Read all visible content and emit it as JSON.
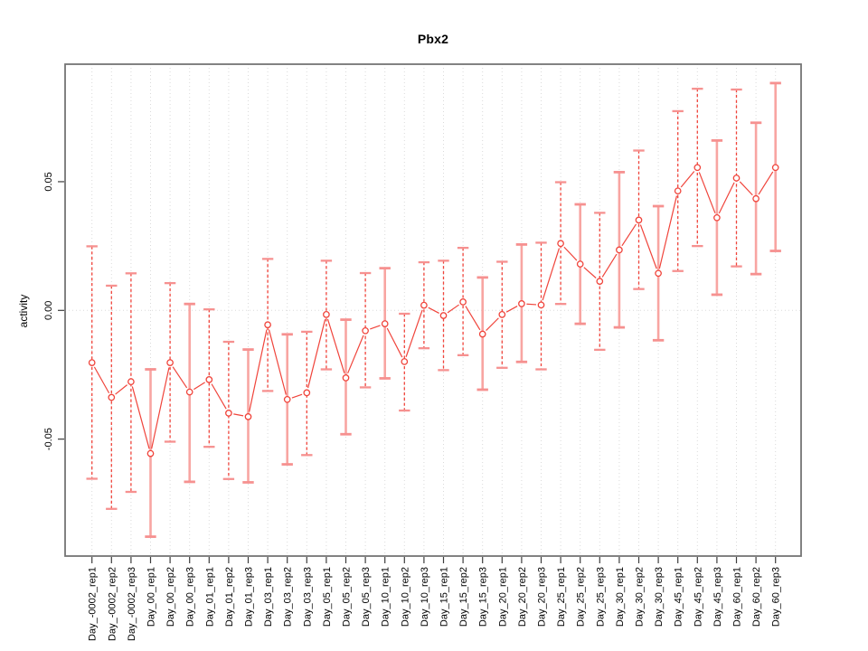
{
  "chart_data": {
    "type": "line",
    "subtype": "points-with-error-bars",
    "title": "Pbx2",
    "xlabel": "",
    "ylabel": "activity",
    "legend": null,
    "grid": {
      "vertical_dotted_per_category": true,
      "horizontal_line_at": 0,
      "style": "dotted"
    },
    "ylim": [
      -0.095,
      0.096
    ],
    "y_ticks": [
      {
        "value": 0.05,
        "label": "0.05"
      },
      {
        "value": 0.0,
        "label": "0.00"
      },
      {
        "value": -0.05,
        "label": "-0.05"
      }
    ],
    "categories": [
      "Day_-0002_rep1",
      "Day_-0002_rep2",
      "Day_-0002_rep3",
      "Day_00_rep1",
      "Day_00_rep2",
      "Day_00_rep3",
      "Day_01_rep1",
      "Day_01_rep2",
      "Day_01_rep3",
      "Day_03_rep1",
      "Day_03_rep2",
      "Day_03_rep3",
      "Day_05_rep1",
      "Day_05_rep2",
      "Day_05_rep3",
      "Day_10_rep1",
      "Day_10_rep2",
      "Day_10_rep3",
      "Day_15_rep1",
      "Day_15_rep2",
      "Day_15_rep3",
      "Day_20_rep1",
      "Day_20_rep2",
      "Day_20_rep3",
      "Day_25_rep1",
      "Day_25_rep2",
      "Day_25_rep3",
      "Day_30_rep1",
      "Day_30_rep2",
      "Day_30_rep3",
      "Day_45_rep1",
      "Day_45_rep2",
      "Day_45_rep3",
      "Day_60_rep1",
      "Day_60_rep2",
      "Day_60_rep3"
    ],
    "series": [
      {
        "name": "activity",
        "color": "#f0443b",
        "points": [
          {
            "label": "Day_-0002_rep1",
            "value": -0.0203,
            "lo": -0.0654,
            "hi": 0.0249,
            "bar_style": "dashed"
          },
          {
            "label": "Day_-0002_rep2",
            "value": -0.0338,
            "lo": -0.0771,
            "hi": 0.0096,
            "bar_style": "dashed"
          },
          {
            "label": "Day_-0002_rep3",
            "value": -0.0277,
            "lo": -0.0705,
            "hi": 0.0144,
            "bar_style": "dashed"
          },
          {
            "label": "Day_00_rep1",
            "value": -0.0556,
            "lo": -0.0879,
            "hi": -0.0229,
            "bar_style": "solid"
          },
          {
            "label": "Day_00_rep2",
            "value": -0.0203,
            "lo": -0.051,
            "hi": 0.0106,
            "bar_style": "dashed"
          },
          {
            "label": "Day_00_rep3",
            "value": -0.0317,
            "lo": -0.0666,
            "hi": 0.0025,
            "bar_style": "solid"
          },
          {
            "label": "Day_01_rep1",
            "value": -0.0269,
            "lo": -0.053,
            "hi": 0.0004,
            "bar_style": "dashed"
          },
          {
            "label": "Day_01_rep2",
            "value": -0.0399,
            "lo": -0.0655,
            "hi": -0.0122,
            "bar_style": "dashed"
          },
          {
            "label": "Day_01_rep3",
            "value": -0.0413,
            "lo": -0.0668,
            "hi": -0.0152,
            "bar_style": "solid"
          },
          {
            "label": "Day_03_rep1",
            "value": -0.0056,
            "lo": -0.0313,
            "hi": 0.02,
            "bar_style": "dashed"
          },
          {
            "label": "Day_03_rep2",
            "value": -0.0346,
            "lo": -0.0598,
            "hi": -0.0093,
            "bar_style": "solid"
          },
          {
            "label": "Day_03_rep3",
            "value": -0.032,
            "lo": -0.0562,
            "hi": -0.0083,
            "bar_style": "dashed"
          },
          {
            "label": "Day_05_rep1",
            "value": -0.0016,
            "lo": -0.0229,
            "hi": 0.0193,
            "bar_style": "dashed"
          },
          {
            "label": "Day_05_rep2",
            "value": -0.0262,
            "lo": -0.0481,
            "hi": -0.0036,
            "bar_style": "solid"
          },
          {
            "label": "Day_05_rep3",
            "value": -0.0079,
            "lo": -0.0299,
            "hi": 0.0145,
            "bar_style": "dashed"
          },
          {
            "label": "Day_10_rep1",
            "value": -0.0052,
            "lo": -0.0264,
            "hi": 0.0164,
            "bar_style": "solid"
          },
          {
            "label": "Day_10_rep2",
            "value": -0.0199,
            "lo": -0.0389,
            "hi": -0.0013,
            "bar_style": "dashed"
          },
          {
            "label": "Day_10_rep3",
            "value": 0.002,
            "lo": -0.0147,
            "hi": 0.0187,
            "bar_style": "dashed"
          },
          {
            "label": "Day_15_rep1",
            "value": -0.002,
            "lo": -0.0232,
            "hi": 0.0193,
            "bar_style": "dashed"
          },
          {
            "label": "Day_15_rep2",
            "value": 0.0033,
            "lo": -0.0174,
            "hi": 0.0243,
            "bar_style": "dashed"
          },
          {
            "label": "Day_15_rep3",
            "value": -0.0092,
            "lo": -0.0308,
            "hi": 0.0128,
            "bar_style": "solid"
          },
          {
            "label": "Day_20_rep1",
            "value": -0.0016,
            "lo": -0.0223,
            "hi": 0.0189,
            "bar_style": "dashed"
          },
          {
            "label": "Day_20_rep2",
            "value": 0.0026,
            "lo": -0.02,
            "hi": 0.0256,
            "bar_style": "solid"
          },
          {
            "label": "Day_20_rep3",
            "value": 0.0021,
            "lo": -0.0229,
            "hi": 0.0263,
            "bar_style": "dashed"
          },
          {
            "label": "Day_25_rep1",
            "value": 0.026,
            "lo": 0.0025,
            "hi": 0.0498,
            "bar_style": "dashed"
          },
          {
            "label": "Day_25_rep2",
            "value": 0.018,
            "lo": -0.0052,
            "hi": 0.0412,
            "bar_style": "solid"
          },
          {
            "label": "Day_25_rep3",
            "value": 0.0113,
            "lo": -0.0153,
            "hi": 0.0379,
            "bar_style": "dashed"
          },
          {
            "label": "Day_30_rep1",
            "value": 0.0235,
            "lo": -0.0066,
            "hi": 0.0537,
            "bar_style": "solid"
          },
          {
            "label": "Day_30_rep2",
            "value": 0.0351,
            "lo": 0.0083,
            "hi": 0.0621,
            "bar_style": "dashed"
          },
          {
            "label": "Day_30_rep3",
            "value": 0.0144,
            "lo": -0.0116,
            "hi": 0.0405,
            "bar_style": "solid"
          },
          {
            "label": "Day_45_rep1",
            "value": 0.0464,
            "lo": 0.0153,
            "hi": 0.0774,
            "bar_style": "dashed"
          },
          {
            "label": "Day_45_rep2",
            "value": 0.0555,
            "lo": 0.025,
            "hi": 0.0861,
            "bar_style": "dashed"
          },
          {
            "label": "Day_45_rep3",
            "value": 0.036,
            "lo": 0.0061,
            "hi": 0.066,
            "bar_style": "solid"
          },
          {
            "label": "Day_60_rep1",
            "value": 0.0514,
            "lo": 0.0171,
            "hi": 0.0858,
            "bar_style": "dashed"
          },
          {
            "label": "Day_60_rep2",
            "value": 0.0434,
            "lo": 0.0141,
            "hi": 0.0729,
            "bar_style": "solid"
          },
          {
            "label": "Day_60_rep3",
            "value": 0.0555,
            "lo": 0.0231,
            "hi": 0.0883,
            "bar_style": "solid"
          }
        ]
      }
    ],
    "colors": {
      "point_and_line": "#f0443b",
      "error_bar_light": "#f8a5a2",
      "error_bar_cap": "#f69190",
      "gridline": "#dadada",
      "plot_border": "#757575",
      "axis_tick": "#3d3d3d",
      "text": "#000000",
      "background": "#ffffff"
    }
  }
}
